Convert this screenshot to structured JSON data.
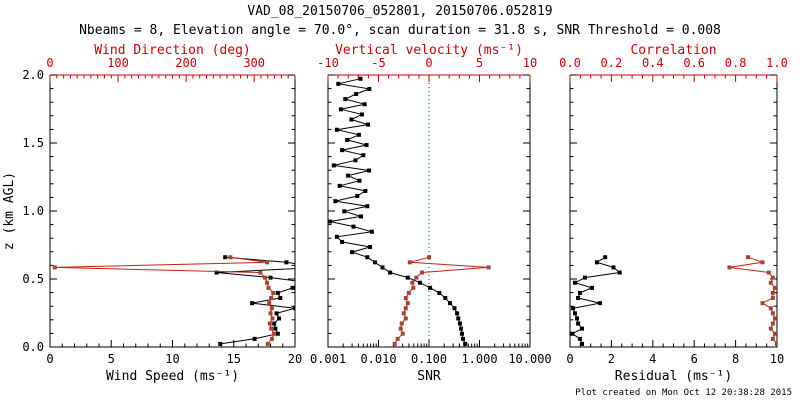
{
  "header": {
    "title": "VAD_08_20150706_052801, 20150706.052819",
    "subtitle": "Nbeams = 8, Elevation angle = 70.0°, scan duration = 31.8 s, SNR Threshold = 0.008"
  },
  "footer": {
    "created": "Plot created on Mon Oct 12 20:38:28 2015"
  },
  "colors": {
    "background": "#ffffff",
    "frame": "#000000",
    "red_axis": "#cc0000",
    "red_line": "#c42114",
    "red_marker": "#a8432c",
    "black_series": "#000000"
  },
  "chart_data": {
    "type": "line",
    "title": "VAD_08_20150706_052801, 20150706.052819",
    "subtitle": "Nbeams = 8, Elevation angle = 70.0°, scan duration = 31.8 s, SNR Threshold = 0.008",
    "grid": false,
    "legend": "none",
    "y_axis": {
      "label": "z (km AGL)",
      "min": 0,
      "max": 2,
      "ticks": [
        0.0,
        0.5,
        1.0,
        1.5,
        2.0
      ],
      "tick_labels": [
        "0.0",
        "0.5",
        "1.0",
        "1.5",
        "2.0"
      ],
      "minor_step": 0.1
    },
    "z_levels_low": [
      0.0225,
      0.06,
      0.0975,
      0.135,
      0.1725,
      0.21,
      0.2475,
      0.285,
      0.3225,
      0.36,
      0.3975,
      0.435,
      0.4725,
      0.51,
      0.5475,
      0.585,
      0.6225,
      0.66
    ],
    "z_levels_high": [
      0.6975,
      0.735,
      0.7725,
      0.81,
      0.8475,
      0.885,
      0.9225,
      0.96,
      0.9975,
      1.035,
      1.0725,
      1.11,
      1.1475,
      1.185,
      1.2225,
      1.26,
      1.2975,
      1.335,
      1.3725,
      1.41,
      1.4475,
      1.485,
      1.5225,
      1.56,
      1.5975,
      1.635,
      1.6725,
      1.71,
      1.7475,
      1.785,
      1.8225,
      1.86,
      1.8975,
      1.935,
      1.9725
    ],
    "panels": [
      {
        "name": "wind",
        "bottom_axis": {
          "label": "Wind Speed (ms⁻¹)",
          "min": 0,
          "max": 20,
          "ticks": [
            0,
            5,
            10,
            15,
            20
          ],
          "tick_labels": [
            "0",
            "5",
            "10",
            "15",
            "20"
          ],
          "minor_step": 1,
          "color": "black"
        },
        "top_axis": {
          "label": "Wind Direction (deg)",
          "min": 0,
          "max": 360,
          "ticks": [
            0,
            100,
            200,
            300
          ],
          "tick_labels": [
            "0",
            "100",
            "200",
            "300"
          ],
          "minor_step": 10,
          "color": "red"
        },
        "show_y_labels": true,
        "series": [
          {
            "name": "wind-speed",
            "axis": "bottom",
            "style": "black",
            "z": [
              0.0225,
              0.06,
              0.0975,
              0.135,
              0.1725,
              0.21,
              0.2475,
              0.285,
              0.3225,
              0.36,
              0.3975,
              0.435,
              0.4725,
              0.51,
              0.5475,
              0.585,
              0.6225,
              0.66
            ],
            "values": [
              13.9,
              16.7,
              18.6,
              18.4,
              18.3,
              18.7,
              18.5,
              20.0,
              16.5,
              18.8,
              18.6,
              19.8,
              21.2,
              18.0,
              13.6,
              22.0,
              19.3,
              14.3
            ]
          },
          {
            "name": "wind-direction",
            "axis": "top",
            "style": "red",
            "z": [
              0.0225,
              0.06,
              0.0975,
              0.135,
              0.1725,
              0.21,
              0.2475,
              0.285,
              0.3225,
              0.36,
              0.3975,
              0.435,
              0.4725,
              0.51,
              0.5475,
              0.585,
              0.6225,
              0.66
            ],
            "values": [
              320,
              326,
              329,
              325,
              323,
              327,
              324,
              326,
              322,
              325,
              328,
              321,
              319,
              316,
              309,
              7,
              319,
              265
            ]
          }
        ]
      },
      {
        "name": "snr",
        "bottom_axis": {
          "label": "SNR",
          "scale": "log",
          "min": 0.001,
          "max": 10,
          "ticks": [
            0.001,
            0.01,
            0.1,
            1,
            10
          ],
          "tick_labels": [
            "0.001",
            "0.010",
            "0.100",
            "1.000",
            "10.000"
          ],
          "color": "black"
        },
        "top_axis": {
          "label": "Vertical velocity (ms⁻¹)",
          "min": -10,
          "max": 10,
          "ticks": [
            -10,
            -5,
            0,
            5,
            10
          ],
          "tick_labels": [
            "-10",
            "-5",
            "0",
            "5",
            "10"
          ],
          "minor_step": 1,
          "color": "red"
        },
        "show_y_labels": false,
        "zero_line": {
          "axis": "top",
          "value": 0
        },
        "series": [
          {
            "name": "snr-profile",
            "axis": "bottom",
            "style": "black",
            "z": [
              0.0225,
              0.06,
              0.0975,
              0.135,
              0.1725,
              0.21,
              0.2475,
              0.285,
              0.3225,
              0.36,
              0.3975,
              0.435,
              0.4725,
              0.51,
              0.5475,
              0.585,
              0.6225,
              0.66,
              0.6975,
              0.735,
              0.7725,
              0.81,
              0.8475,
              0.885,
              0.9225,
              0.96,
              0.9975,
              1.035,
              1.0725,
              1.11,
              1.1475,
              1.185,
              1.2225,
              1.26,
              1.2975,
              1.335,
              1.3725,
              1.41,
              1.4475,
              1.485,
              1.5225,
              1.56,
              1.5975,
              1.635,
              1.6725,
              1.71,
              1.7475,
              1.785,
              1.8225,
              1.86,
              1.8975,
              1.935,
              1.9725
            ],
            "values": [
              0.52,
              0.47,
              0.45,
              0.43,
              0.41,
              0.38,
              0.36,
              0.32,
              0.26,
              0.21,
              0.16,
              0.105,
              0.066,
              0.038,
              0.017,
              0.012,
              0.0085,
              0.006,
              0.003,
              0.0068,
              0.0019,
              0.0015,
              0.0074,
              0.0032,
              0.0011,
              0.0045,
              0.0021,
              0.006,
              0.0014,
              0.0038,
              0.0055,
              0.0017,
              0.0042,
              0.0025,
              0.0065,
              0.0013,
              0.0035,
              0.005,
              0.0019,
              0.0058,
              0.0024,
              0.0041,
              0.0015,
              0.0062,
              0.0029,
              0.0047,
              0.0018,
              0.0053,
              0.0022,
              0.0036,
              0.0066,
              0.0016,
              0.0044
            ]
          },
          {
            "name": "vertical-velocity",
            "axis": "top",
            "style": "red",
            "z": [
              0.0225,
              0.06,
              0.0975,
              0.135,
              0.1725,
              0.21,
              0.2475,
              0.285,
              0.3225,
              0.36,
              0.3975,
              0.435,
              0.4725,
              0.51,
              0.5475,
              0.585,
              0.6225,
              0.66
            ],
            "values": [
              -3.4,
              -3.1,
              -2.6,
              -2.8,
              -2.7,
              -2.3,
              -2.5,
              -2.3,
              -2.1,
              -2.3,
              -2.0,
              -1.55,
              -1.65,
              -1.25,
              -0.7,
              5.9,
              -1.9,
              0.0
            ]
          }
        ]
      },
      {
        "name": "residual",
        "bottom_axis": {
          "label": "Residual (ms⁻¹)",
          "min": 0,
          "max": 10,
          "ticks": [
            0,
            2,
            4,
            6,
            8,
            10
          ],
          "tick_labels": [
            "0",
            "2",
            "4",
            "6",
            "8",
            "10"
          ],
          "minor_step": 0.5,
          "color": "black"
        },
        "top_axis": {
          "label": "Correlation",
          "min": 0,
          "max": 1,
          "ticks": [
            0.0,
            0.2,
            0.4,
            0.6,
            0.8,
            1.0
          ],
          "tick_labels": [
            "0.0",
            "0.2",
            "0.4",
            "0.6",
            "0.8",
            "1.0"
          ],
          "minor_step": 0.05,
          "color": "red"
        },
        "show_y_labels": false,
        "series": [
          {
            "name": "residual-profile",
            "axis": "bottom",
            "style": "black",
            "z": [
              0.0225,
              0.06,
              0.0975,
              0.135,
              0.1725,
              0.21,
              0.2475,
              0.285,
              0.3225,
              0.36,
              0.3975,
              0.435,
              0.4725,
              0.51,
              0.5475,
              0.585,
              0.6225,
              0.66
            ],
            "values": [
              0.58,
              0.48,
              0.12,
              0.58,
              0.39,
              0.34,
              0.24,
              0.15,
              1.45,
              0.39,
              0.48,
              1.06,
              0.24,
              0.72,
              2.4,
              2.1,
              1.3,
              1.7
            ]
          },
          {
            "name": "correlation-profile",
            "axis": "top",
            "style": "red",
            "z": [
              0.0225,
              0.06,
              0.0975,
              0.135,
              0.1725,
              0.21,
              0.2475,
              0.285,
              0.3225,
              0.36,
              0.3975,
              0.435,
              0.4725,
              0.51,
              0.5475,
              0.585,
              0.6225,
              0.66
            ],
            "values": [
              1.0,
              0.98,
              0.99,
              0.97,
              0.98,
              0.99,
              0.98,
              0.97,
              0.93,
              0.98,
              0.98,
              0.99,
              0.97,
              0.98,
              0.96,
              0.77,
              0.93,
              0.86
            ]
          }
        ]
      }
    ]
  }
}
